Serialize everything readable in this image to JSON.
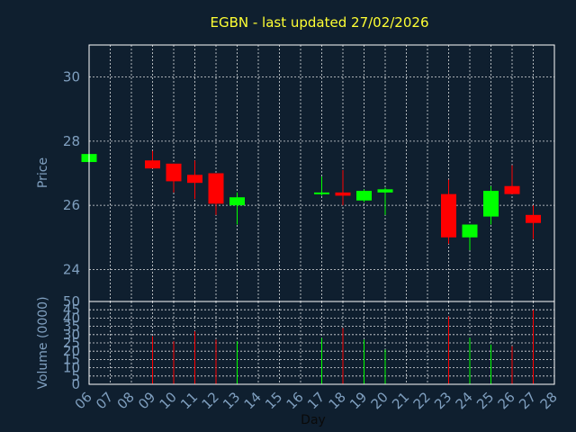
{
  "chart_data": {
    "type": "candlestick",
    "title": "EGBN - last updated 27/02/2026",
    "xlabel": "Day",
    "price_panel": {
      "ylabel": "Price",
      "ylim": [
        23.0,
        31.0
      ],
      "yticks": [
        "24",
        "26",
        "28",
        "30"
      ]
    },
    "volume_panel": {
      "ylabel": "Volume (0000)",
      "ylim": [
        0,
        50
      ],
      "yticks": [
        "0",
        "5",
        "10",
        "15",
        "20",
        "25",
        "30",
        "35",
        "40",
        "45",
        "50"
      ]
    },
    "x_ticks": [
      "06",
      "07",
      "08",
      "09",
      "10",
      "11",
      "12",
      "13",
      "14",
      "15",
      "16",
      "17",
      "18",
      "19",
      "20",
      "21",
      "22",
      "23",
      "24",
      "25",
      "26",
      "27",
      "28"
    ],
    "colors": {
      "up": "#00ff00",
      "down": "#ff0000",
      "title": "#ffff33",
      "background": "#0f1f2f",
      "tick": "#7f9fbf"
    },
    "candles": [
      {
        "day": "06",
        "open": 27.35,
        "close": 27.6,
        "high": 27.6,
        "low": 27.35,
        "volume": 0
      },
      {
        "day": "09",
        "open": 27.4,
        "close": 27.15,
        "high": 27.7,
        "low": 27.15,
        "volume": 29
      },
      {
        "day": "10",
        "open": 27.3,
        "close": 26.75,
        "high": 27.3,
        "low": 26.4,
        "volume": 26
      },
      {
        "day": "11",
        "open": 26.95,
        "close": 26.7,
        "high": 27.4,
        "low": 26.2,
        "volume": 32
      },
      {
        "day": "12",
        "open": 27.0,
        "close": 26.05,
        "high": 27.0,
        "low": 25.7,
        "volume": 27
      },
      {
        "day": "13",
        "open": 26.0,
        "close": 26.25,
        "high": 26.4,
        "low": 25.4,
        "volume": 26
      },
      {
        "day": "17",
        "open": 26.35,
        "close": 26.4,
        "high": 26.9,
        "low": 26.3,
        "volume": 28
      },
      {
        "day": "18",
        "open": 26.4,
        "close": 26.3,
        "high": 27.1,
        "low": 26.0,
        "volume": 34
      },
      {
        "day": "19",
        "open": 26.15,
        "close": 26.45,
        "high": 26.5,
        "low": 26.1,
        "volume": 27
      },
      {
        "day": "20",
        "open": 26.4,
        "close": 26.5,
        "high": 26.55,
        "low": 25.7,
        "volume": 21
      },
      {
        "day": "23",
        "open": 26.35,
        "close": 25.0,
        "high": 26.8,
        "low": 24.8,
        "volume": 41
      },
      {
        "day": "24",
        "open": 25.0,
        "close": 25.4,
        "high": 25.4,
        "low": 24.6,
        "volume": 28
      },
      {
        "day": "25",
        "open": 25.65,
        "close": 26.45,
        "high": 26.6,
        "low": 25.4,
        "volume": 24
      },
      {
        "day": "26",
        "open": 26.6,
        "close": 26.35,
        "high": 27.25,
        "low": 26.35,
        "volume": 23
      },
      {
        "day": "27",
        "open": 25.7,
        "close": 25.45,
        "high": 26.0,
        "low": 24.95,
        "volume": 45
      }
    ]
  }
}
